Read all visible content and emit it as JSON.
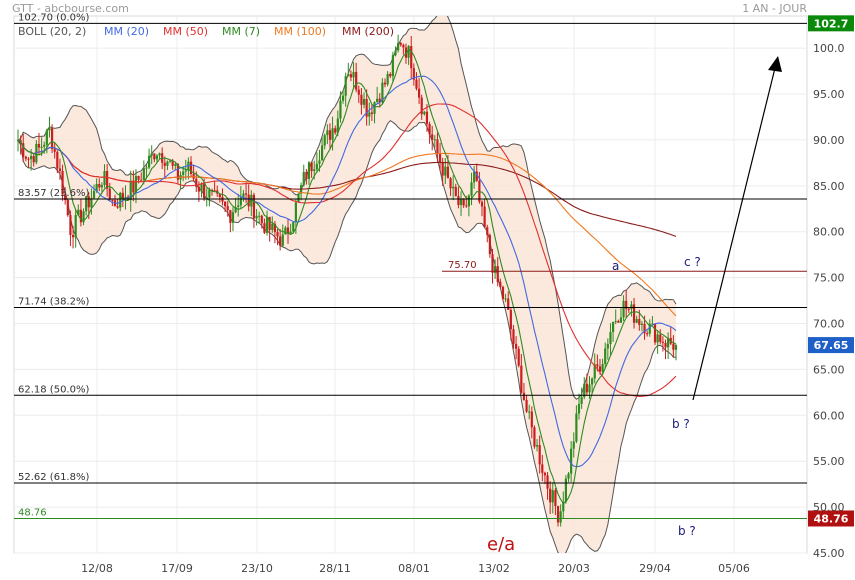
{
  "header": {
    "title": "GTT - abcbourse.com",
    "period": "1 AN - JOUR"
  },
  "chart_data": {
    "type": "candlestick",
    "ylim": [
      45,
      103.5
    ],
    "y_ticks": [
      45,
      50,
      55,
      60,
      65,
      70,
      75,
      80,
      85,
      90,
      95,
      100
    ],
    "y_tick_labels": [
      "45.00",
      "50.00",
      "55.00",
      "60.00",
      "65.00",
      "70.00",
      "75.00",
      "80.00",
      "85.00",
      "90.00",
      "95.00",
      "100.0"
    ],
    "x_tick_labels": [
      "12/08",
      "17/09",
      "23/10",
      "28/11",
      "08/01",
      "13/02",
      "20/03",
      "29/04",
      "05/06"
    ],
    "legend": [
      {
        "label": "BOLL (20, 2)",
        "color": "#555555"
      },
      {
        "label": "MM (20)",
        "color": "#4169e1"
      },
      {
        "label": "MM (50)",
        "color": "#e03030"
      },
      {
        "label": "MM (7)",
        "color": "#2e8b20"
      },
      {
        "label": "MM (100)",
        "color": "#f07820"
      },
      {
        "label": "MM (200)",
        "color": "#8b1a1a"
      }
    ],
    "levels": [
      {
        "value": 102.7,
        "label": "102.70  (0.0%)",
        "color": "#000000",
        "badge": "102.7",
        "badge_color": "#0a8a0a"
      },
      {
        "value": 83.57,
        "label": "83.57  (23.6%)",
        "color": "#000000"
      },
      {
        "value": 75.7,
        "label": "75.70",
        "color": "#8b1a1a"
      },
      {
        "value": 71.74,
        "label": "71.74  (38.2%)",
        "color": "#000000"
      },
      {
        "value": 62.18,
        "label": "62.18  (50.0%)",
        "color": "#000000"
      },
      {
        "value": 52.62,
        "label": "52.62  (61.8%)",
        "color": "#000000"
      },
      {
        "value": 48.76,
        "label": "48.76",
        "color": "#2e8b20",
        "badge": "48.76",
        "badge_color": "#b01010"
      }
    ],
    "last_price": {
      "value": 67.65,
      "label": "67.65",
      "color": "#1e5fc8"
    },
    "annotations": [
      {
        "text": "a",
        "color": "#1a1a7a"
      },
      {
        "text": "c ?",
        "color": "#1a1a7a"
      },
      {
        "text": "b ?",
        "color": "#1a1a7a"
      },
      {
        "text": "b ?",
        "color": "#1a1a7a"
      },
      {
        "text": "e/a",
        "color": "#c01010"
      }
    ],
    "price_path": [
      90,
      88,
      89,
      91,
      86,
      80,
      82,
      84,
      86,
      83,
      84,
      85,
      87,
      89,
      88,
      86,
      87,
      85,
      84,
      83,
      82,
      84,
      83,
      81,
      80,
      79,
      82,
      86,
      88,
      90,
      92,
      98,
      96,
      93,
      95,
      97,
      101,
      99,
      94,
      90,
      87,
      84,
      82,
      86,
      80,
      75,
      72,
      66,
      60,
      56,
      52,
      49,
      55,
      62,
      64,
      66,
      70,
      72,
      71,
      70,
      69,
      68,
      67.65
    ]
  }
}
